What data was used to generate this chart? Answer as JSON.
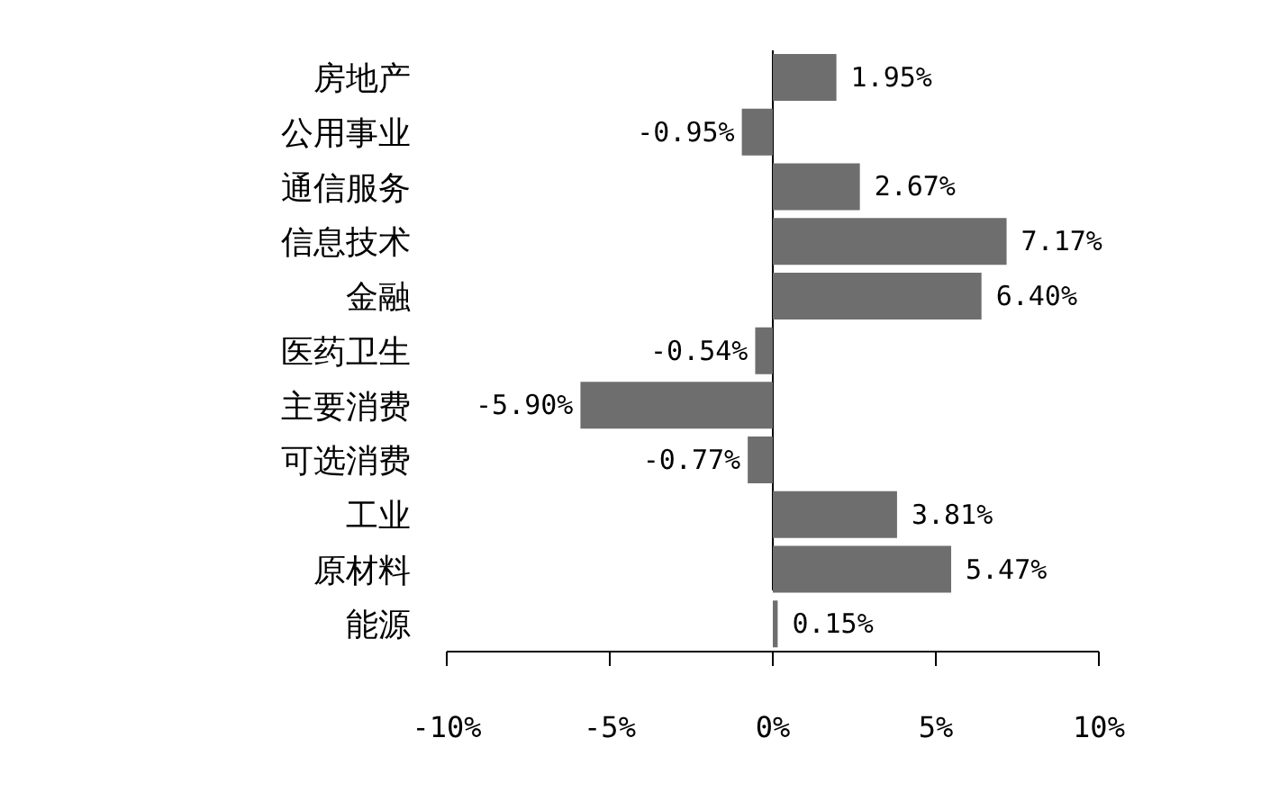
{
  "chart_data": {
    "type": "bar",
    "orientation": "horizontal",
    "categories": [
      "房地产",
      "公用事业",
      "通信服务",
      "信息技术",
      "金融",
      "医药卫生",
      "主要消费",
      "可选消费",
      "工业",
      "原材料",
      "能源"
    ],
    "values": [
      1.95,
      -0.95,
      2.67,
      7.17,
      6.4,
      -0.54,
      -5.9,
      -0.77,
      3.81,
      5.47,
      0.15
    ],
    "value_labels": [
      "1.95%",
      "-0.95%",
      "2.67%",
      "7.17%",
      "6.40%",
      "-0.54%",
      "-5.90%",
      "-0.77%",
      "3.81%",
      "5.47%",
      "0.15%"
    ],
    "color": "#6e6e6e",
    "xlim": [
      -10,
      10
    ],
    "xticks": [
      {
        "value": -10,
        "label": "-10%"
      },
      {
        "value": -5,
        "label": "-5%"
      },
      {
        "value": 0,
        "label": "0%"
      },
      {
        "value": 5,
        "label": "5%"
      },
      {
        "value": 10,
        "label": "10%"
      }
    ],
    "legend": false
  }
}
